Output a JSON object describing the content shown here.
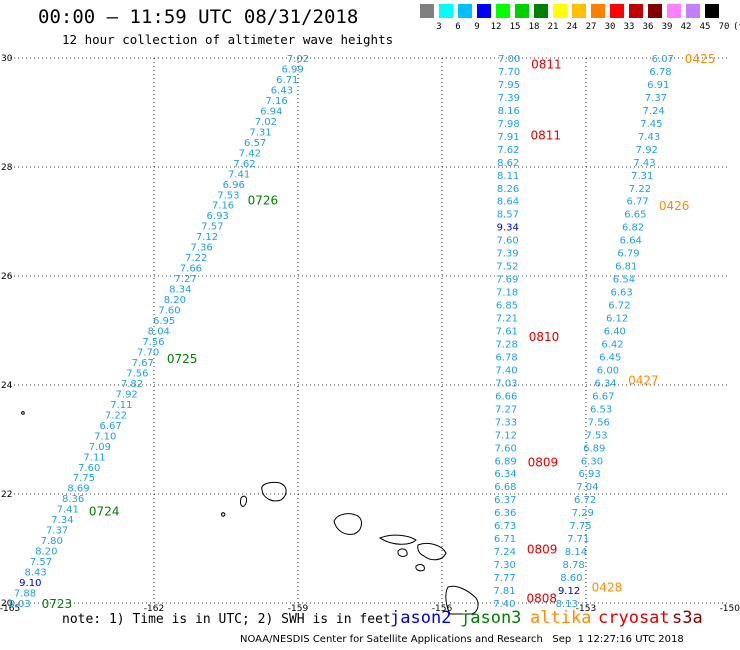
{
  "title": "00:00 — 11:59 UTC 08/31/2018",
  "subtitle": "12 hour collection of altimeter wave heights",
  "color_scale": {
    "labels": [
      "3",
      "6",
      "9",
      "12",
      "15",
      "18",
      "21",
      "24",
      "27",
      "30",
      "33",
      "36",
      "39",
      "42",
      "45",
      "70",
      "(ft)"
    ],
    "colors": [
      "#808080",
      "#00ffff",
      "#00c0ff",
      "#0000ff",
      "#00ff00",
      "#00d000",
      "#008000",
      "#ffff00",
      "#ffc000",
      "#ff8000",
      "#ff0000",
      "#c00000",
      "#800000",
      "#ff80ff",
      "#c080ff",
      "#000000"
    ]
  },
  "axes": {
    "lat_ticks": [
      "30",
      "28",
      "26",
      "24",
      "22",
      "20"
    ],
    "lon_ticks": [
      "-165",
      "-162",
      "-159",
      "-156",
      "-153",
      "-150"
    ]
  },
  "chart_data": {
    "type": "scatter",
    "xlabel": "",
    "ylabel": "",
    "xlim": [
      -165,
      -150
    ],
    "ylim": [
      20,
      30
    ],
    "tracks": [
      {
        "id": "track-a",
        "start": [
          -159.0,
          30.0
        ],
        "end": [
          -164.8,
          20.0
        ],
        "color": "#1e9fe0",
        "values": [
          "7.02",
          "6.99",
          "6.71",
          "6.43",
          "7.16",
          "6.94",
          "7.02",
          "7.31",
          "6.57",
          "7.42",
          "7.62",
          "7.41",
          "6.96",
          "7.53",
          "7.16",
          "6.93",
          "7.57",
          "7.12",
          "7.36",
          "7.22",
          "7.66",
          "7.27",
          "8.34",
          "8.20",
          "7.60",
          "6.95",
          "8.04",
          "7.56",
          "7.70",
          "7.67",
          "7.56",
          "7.82",
          "7.92",
          "7.11",
          "7.22",
          "6.67",
          "7.10",
          "7.09",
          "7.11",
          "7.60",
          "7.75",
          "8.69",
          "8.36",
          "7.41",
          "7.34",
          "7.37",
          "7.80",
          "8.20",
          "7.57",
          "8.43",
          "9.10",
          "7.88",
          "8.03"
        ],
        "times": [
          {
            "text": "0726",
            "lat": 27.4,
            "color": "#008000"
          },
          {
            "text": "0725",
            "lat": 24.5,
            "color": "#008000"
          },
          {
            "text": "0724",
            "lat": 21.7,
            "color": "#008000"
          },
          {
            "text": "0723",
            "lat": 20.0,
            "color": "#008000"
          }
        ]
      },
      {
        "id": "track-b",
        "start": [
          -154.6,
          30.0
        ],
        "end": [
          -154.7,
          20.0
        ],
        "color": "#1e9fe0",
        "values": [
          "7.00",
          "7.70",
          "7.95",
          "7.39",
          "8.16",
          "7.98",
          "7.91",
          "7.62",
          "8.62",
          "8.11",
          "8.26",
          "8.64",
          "8.57",
          "9.34",
          "7.60",
          "7.39",
          "7.52",
          "7.69",
          "7.18",
          "6.85",
          "7.21",
          "7.61",
          "7.28",
          "6.78",
          "7.40",
          "7.03",
          "6.66",
          "7.27",
          "7.33",
          "7.12",
          "7.60",
          "6.89",
          "6.34",
          "6.68",
          "6.37",
          "6.36",
          "6.73",
          "6.71",
          "7.24",
          "7.30",
          "7.77",
          "7.81",
          "7.40"
        ],
        "times": [
          {
            "text": "0811",
            "lat": 29.9,
            "color": "#e00000"
          },
          {
            "text": "0811",
            "lat": 28.6,
            "color": "#e00000"
          },
          {
            "text": "0810",
            "lat": 24.9,
            "color": "#e00000"
          },
          {
            "text": "0809",
            "lat": 22.6,
            "color": "#e00000"
          },
          {
            "text": "0809",
            "lat": 21.0,
            "color": "#e00000"
          },
          {
            "text": "0808",
            "lat": 20.1,
            "color": "#e00000"
          }
        ]
      },
      {
        "id": "track-c",
        "start": [
          -151.4,
          30.0
        ],
        "end": [
          -153.4,
          20.0
        ],
        "color": "#1e9fe0",
        "values": [
          "6.07",
          "6.78",
          "6.91",
          "7.37",
          "7.24",
          "7.45",
          "7.43",
          "7.92",
          "7.43",
          "7.31",
          "7.22",
          "6.77",
          "6.65",
          "6.82",
          "6.64",
          "6.79",
          "6.81",
          "6.54",
          "6.63",
          "6.72",
          "6.12",
          "6.40",
          "6.42",
          "6.45",
          "6.00",
          "6.34",
          "6.67",
          "6.53",
          "7.56",
          "7.53",
          "6.89",
          "6.30",
          "6.93",
          "7.04",
          "6.72",
          "7.29",
          "7.75",
          "7.71",
          "8.14",
          "8.78",
          "8.60",
          "9.12",
          "8.13"
        ],
        "times": [
          {
            "text": "0425",
            "lat": 30.0,
            "color": "#ff8c00"
          },
          {
            "text": "0426",
            "lat": 27.3,
            "color": "#ff8c00"
          },
          {
            "text": "0427",
            "lat": 24.1,
            "color": "#ff8c00"
          },
          {
            "text": "0428",
            "lat": 20.3,
            "color": "#ff8c00"
          }
        ]
      }
    ]
  },
  "note": "note: 1) Time is in UTC; 2) SWH is in feet",
  "satellites": [
    {
      "name": "jason2",
      "color": "#0000e0"
    },
    {
      "name": "jason3",
      "color": "#008000"
    },
    {
      "name": "altika",
      "color": "#ff8c00"
    },
    {
      "name": "cryosat",
      "color": "#e00000"
    },
    {
      "name": "s3a",
      "color": "#800000"
    }
  ],
  "credit": "NOAA/NESDIS Center for Satellite Applications and Research   Sep  1 12:27:16 UTC 2018"
}
